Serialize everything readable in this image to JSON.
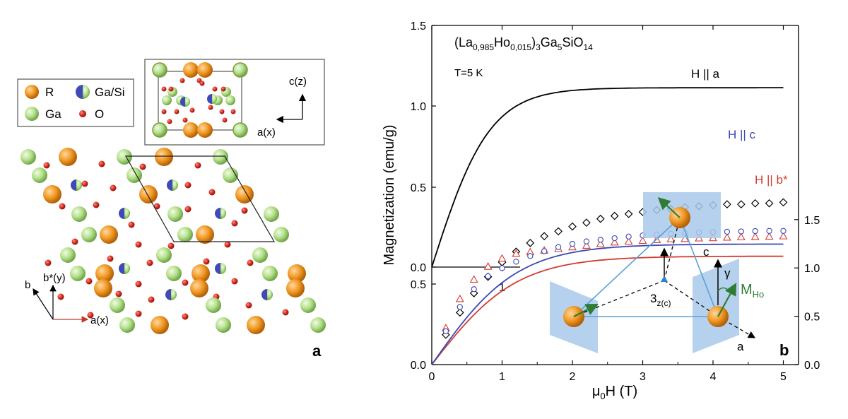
{
  "panel_a": {
    "label": "a",
    "legend": [
      {
        "symbol": "R",
        "label": "R",
        "color": "#f09a24"
      },
      {
        "symbol": "GaSi",
        "label": "Ga/Si",
        "color_left": "#3f49b8",
        "color_right": "#a8d878"
      },
      {
        "symbol": "Ga",
        "label": "Ga",
        "color": "#b4e08a"
      },
      {
        "symbol": "O",
        "label": "O",
        "color": "#d42a1e"
      }
    ],
    "inset_axes": {
      "vertical": "c(z)",
      "horizontal": "a(x)"
    },
    "axes": {
      "b": "b",
      "bstar": "b*(y)",
      "a": "a(x)"
    }
  },
  "chart_data": {
    "type": "scatter",
    "panel_label": "b",
    "formula": "(La0,985Ho0,015)3Ga5SiO14",
    "temperature": "T=5 K",
    "xlabel": "μ0H (T)",
    "ylabel": "Magnetization (emu/g)",
    "xlim": [
      0,
      5.2
    ],
    "ylim_left": [
      0,
      1.5
    ],
    "ylim_right": [
      0,
      1.9
    ],
    "x_ticks": [
      "0",
      "1",
      "2",
      "3",
      "4",
      "5"
    ],
    "y_ticks_left": [
      "0.0",
      "0.5",
      "1.0",
      "1.5"
    ],
    "y_ticks_right": [
      "0.0",
      "0.5",
      "1.0",
      "1.5"
    ],
    "inset_ticks": {
      "x": [
        "1"
      ],
      "y": [
        "0.0",
        "0.5"
      ]
    },
    "series": [
      {
        "name": "H || a",
        "marker": "diamond",
        "color": "#000000",
        "axis": "right",
        "x": [
          0.2,
          0.4,
          0.6,
          0.8,
          1.0,
          1.2,
          1.4,
          1.6,
          1.8,
          2.0,
          2.2,
          2.4,
          2.6,
          2.8,
          3.0,
          3.2,
          3.4,
          3.6,
          3.8,
          4.0,
          4.2,
          4.4,
          4.6,
          4.8,
          5.0
        ],
        "y": [
          0.25,
          0.48,
          0.68,
          0.85,
          1.0,
          1.11,
          1.2,
          1.27,
          1.32,
          1.37,
          1.41,
          1.45,
          1.48,
          1.5,
          1.52,
          1.54,
          1.55,
          1.57,
          1.58,
          1.59,
          1.6,
          1.6,
          1.61,
          1.61,
          1.62
        ],
        "fit": {
          "a": 1.11,
          "k": 1.35
        }
      },
      {
        "name": "H || c",
        "marker": "circle",
        "color": "#3a48b4",
        "axis": "left",
        "x": [
          0.2,
          0.4,
          0.6,
          0.8,
          1.0,
          1.2,
          1.4,
          1.6,
          1.8,
          2.0,
          2.2,
          2.4,
          2.6,
          2.8,
          3.0,
          3.2,
          3.4,
          3.6,
          3.8,
          4.0,
          4.2,
          4.4,
          4.6,
          4.8,
          5.0
        ],
        "y": [
          0.18,
          0.33,
          0.44,
          0.52,
          0.57,
          0.61,
          0.645,
          0.675,
          0.7,
          0.72,
          0.735,
          0.745,
          0.755,
          0.765,
          0.772,
          0.778,
          0.783,
          0.787,
          0.79,
          0.793,
          0.795,
          0.797,
          0.799,
          0.8,
          0.8
        ],
        "fit": {
          "a": 0.745,
          "k": 0.92
        }
      },
      {
        "name": "H || b*",
        "marker": "triangle",
        "color": "#d63a30",
        "axis": "left",
        "x": [
          0.2,
          0.4,
          0.6,
          0.8,
          1.0,
          1.2,
          1.4,
          1.6,
          1.8,
          2.0,
          2.2,
          2.4,
          2.6,
          2.8,
          3.0,
          3.2,
          3.4,
          3.6,
          3.8,
          4.0,
          4.2,
          4.4,
          4.6,
          4.8,
          5.0
        ],
        "y": [
          0.2,
          0.38,
          0.5,
          0.58,
          0.63,
          0.66,
          0.67,
          0.68,
          0.69,
          0.7,
          0.71,
          0.72,
          0.73,
          0.735,
          0.74,
          0.745,
          0.75,
          0.752,
          0.755,
          0.757,
          0.76,
          0.762,
          0.764,
          0.766,
          0.768
        ],
        "fit": {
          "a": 0.67,
          "k": 0.92
        }
      }
    ],
    "diagram": {
      "c": "c",
      "gamma": "γ",
      "moment": "MHo",
      "axis3": "3z(c)",
      "a": "a"
    }
  }
}
